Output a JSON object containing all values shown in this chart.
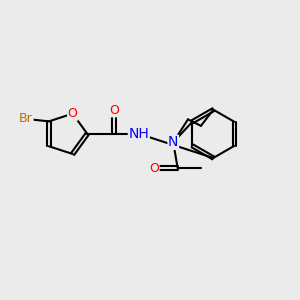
{
  "bg_color": "#ebebeb",
  "bond_color": "#000000",
  "bond_width": 1.5,
  "atom_colors": {
    "N": "#0000ff",
    "O": "#ff0000",
    "Br": "#cc6600"
  },
  "font_size": 9,
  "fig_size": [
    3.0,
    3.0
  ],
  "dpi": 100,
  "xlim": [
    0,
    10
  ],
  "ylim": [
    0,
    10
  ]
}
